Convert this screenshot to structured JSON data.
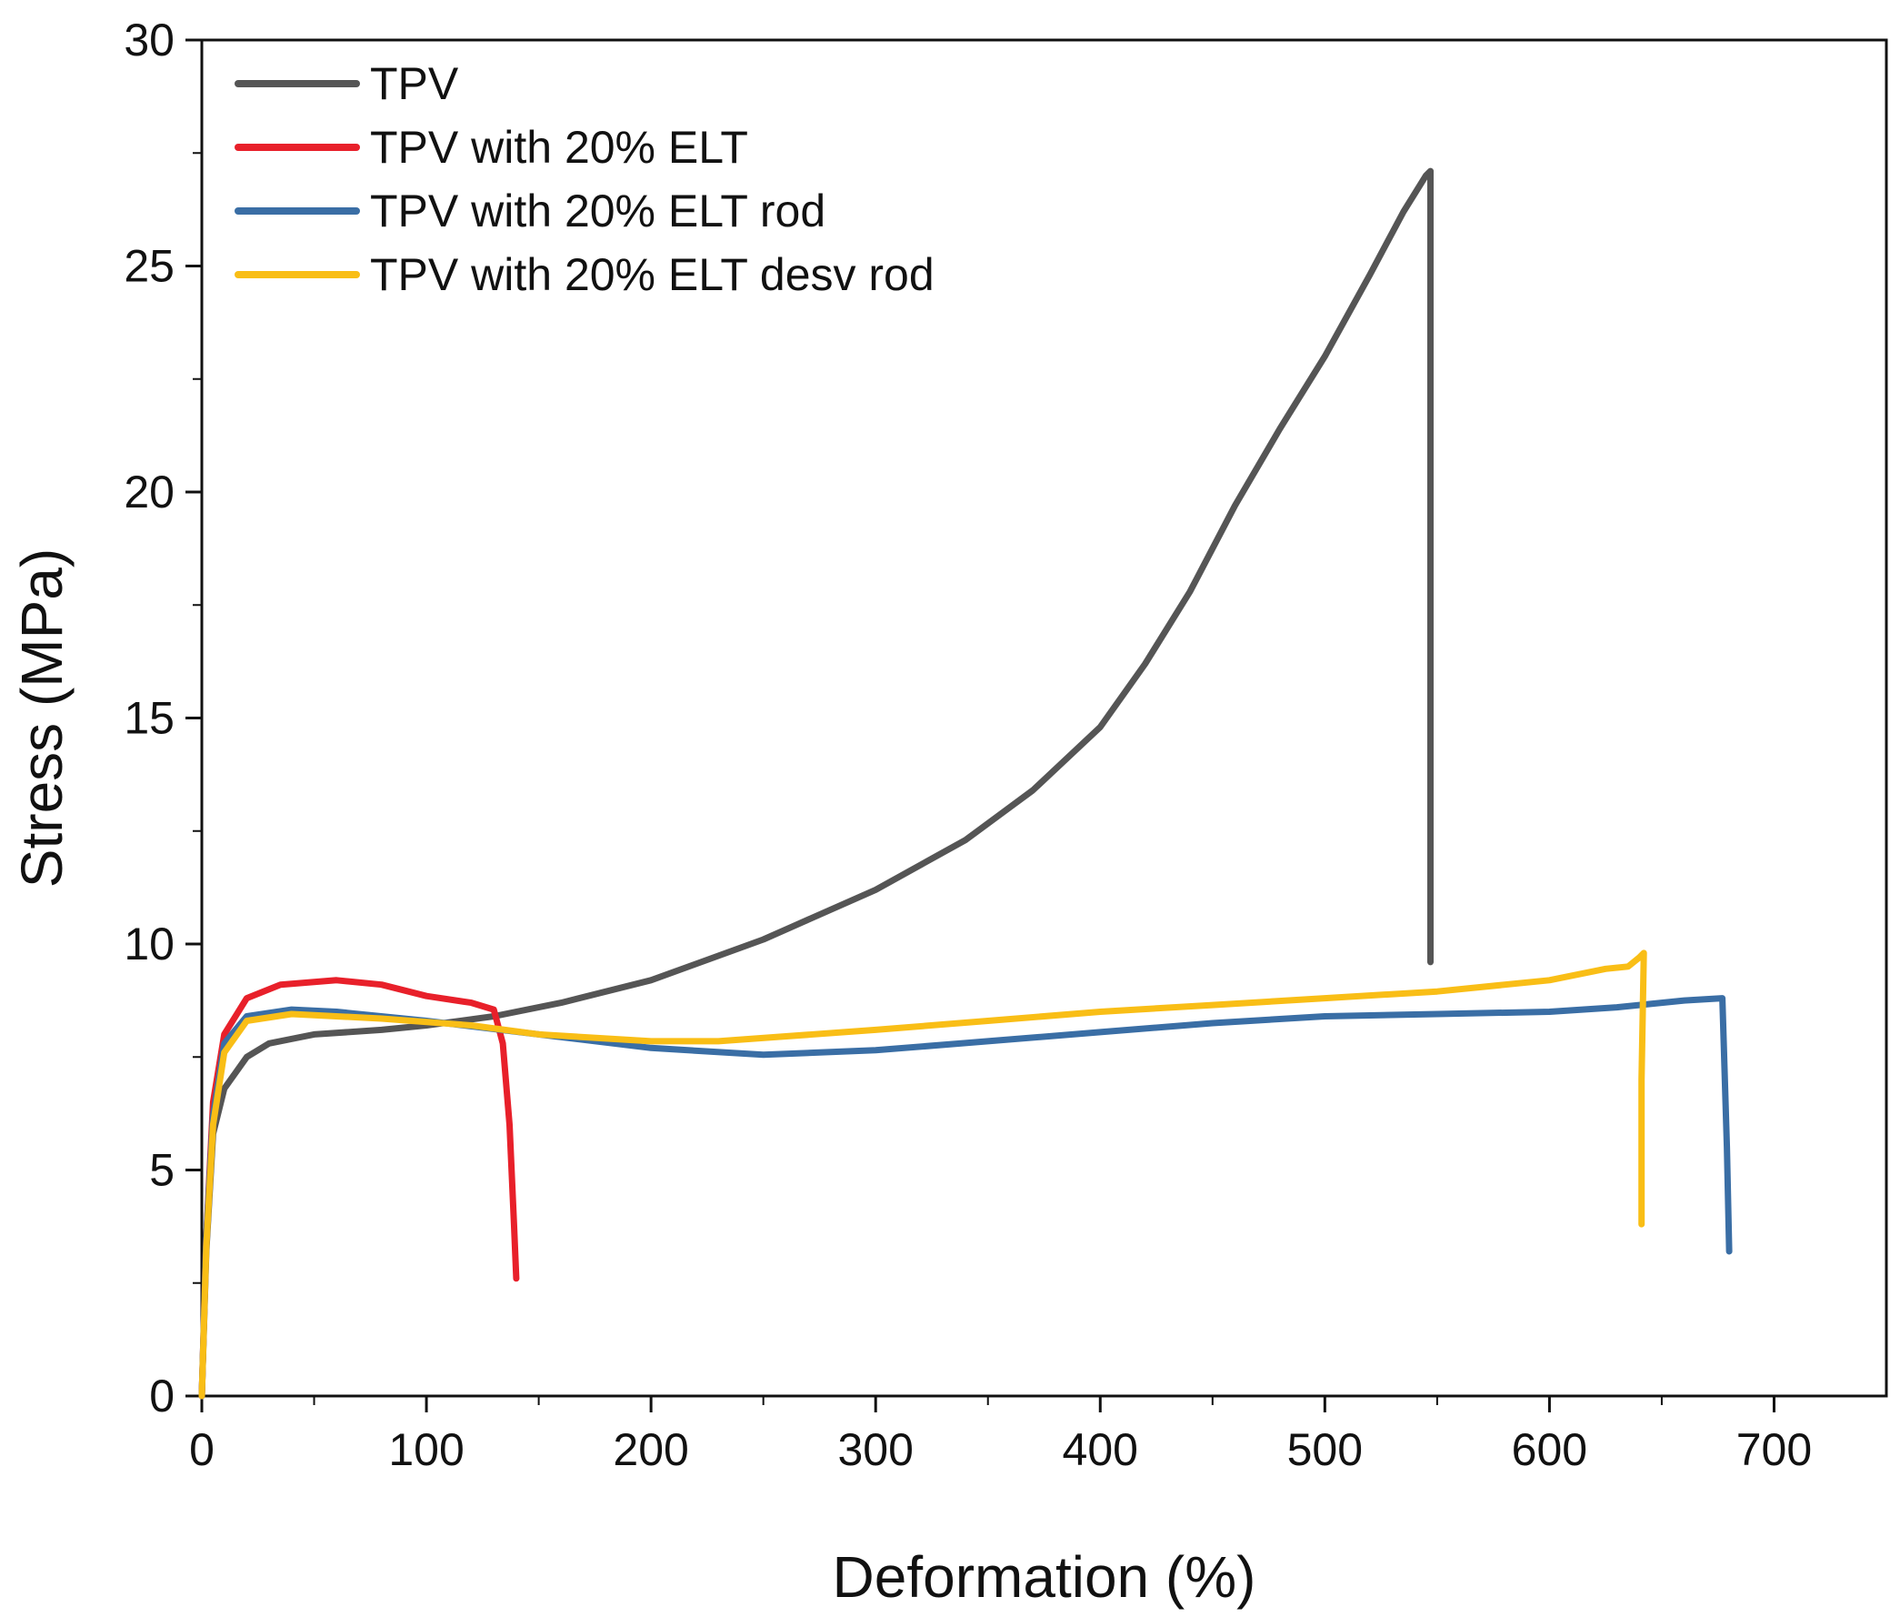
{
  "chart_data": {
    "type": "line",
    "title": "",
    "xlabel": "Deformation (%)",
    "ylabel": "Stress (MPa)",
    "xlim": [
      0,
      750
    ],
    "ylim": [
      0,
      30
    ],
    "xticks": [
      0,
      100,
      200,
      300,
      400,
      500,
      600,
      700
    ],
    "yticks": [
      0,
      5,
      10,
      15,
      20,
      25,
      30
    ],
    "grid": false,
    "legend_position": "top-left",
    "series": [
      {
        "name": "TPV",
        "color": "#555555",
        "points": [
          [
            0,
            0
          ],
          [
            2,
            3.2
          ],
          [
            5,
            5.8
          ],
          [
            10,
            6.8
          ],
          [
            20,
            7.5
          ],
          [
            30,
            7.8
          ],
          [
            50,
            8.0
          ],
          [
            80,
            8.1
          ],
          [
            100,
            8.2
          ],
          [
            130,
            8.4
          ],
          [
            160,
            8.7
          ],
          [
            200,
            9.2
          ],
          [
            250,
            10.1
          ],
          [
            300,
            11.2
          ],
          [
            340,
            12.3
          ],
          [
            370,
            13.4
          ],
          [
            400,
            14.8
          ],
          [
            420,
            16.2
          ],
          [
            440,
            17.8
          ],
          [
            460,
            19.7
          ],
          [
            480,
            21.4
          ],
          [
            500,
            23.0
          ],
          [
            520,
            24.8
          ],
          [
            535,
            26.2
          ],
          [
            545,
            27.0
          ],
          [
            547,
            27.1
          ],
          [
            547,
            9.6
          ]
        ]
      },
      {
        "name": "TPV with 20% ELT",
        "color": "#e8202a",
        "points": [
          [
            0,
            0
          ],
          [
            2,
            3.5
          ],
          [
            5,
            6.5
          ],
          [
            10,
            8.0
          ],
          [
            20,
            8.8
          ],
          [
            35,
            9.1
          ],
          [
            60,
            9.2
          ],
          [
            80,
            9.1
          ],
          [
            100,
            8.85
          ],
          [
            120,
            8.7
          ],
          [
            130,
            8.55
          ],
          [
            134,
            7.8
          ],
          [
            137,
            6.0
          ],
          [
            139,
            3.8
          ],
          [
            140,
            2.6
          ]
        ]
      },
      {
        "name": "TPV with 20% ELT rod",
        "color": "#3a6ea5",
        "points": [
          [
            0,
            0
          ],
          [
            2,
            3.5
          ],
          [
            5,
            6.2
          ],
          [
            10,
            7.8
          ],
          [
            20,
            8.4
          ],
          [
            40,
            8.55
          ],
          [
            60,
            8.5
          ],
          [
            100,
            8.3
          ],
          [
            150,
            8.0
          ],
          [
            200,
            7.7
          ],
          [
            250,
            7.55
          ],
          [
            300,
            7.65
          ],
          [
            350,
            7.85
          ],
          [
            400,
            8.05
          ],
          [
            450,
            8.25
          ],
          [
            500,
            8.4
          ],
          [
            550,
            8.45
          ],
          [
            600,
            8.5
          ],
          [
            630,
            8.6
          ],
          [
            660,
            8.75
          ],
          [
            677,
            8.8
          ],
          [
            679,
            5.5
          ],
          [
            680,
            3.2
          ]
        ]
      },
      {
        "name": "TPV with 20% ELT desv rod",
        "color": "#f9be16",
        "points": [
          [
            0,
            0
          ],
          [
            2,
            3.3
          ],
          [
            5,
            6.0
          ],
          [
            10,
            7.6
          ],
          [
            20,
            8.3
          ],
          [
            40,
            8.45
          ],
          [
            80,
            8.35
          ],
          [
            120,
            8.2
          ],
          [
            150,
            8.0
          ],
          [
            200,
            7.85
          ],
          [
            230,
            7.85
          ],
          [
            300,
            8.1
          ],
          [
            350,
            8.3
          ],
          [
            400,
            8.5
          ],
          [
            450,
            8.65
          ],
          [
            500,
            8.8
          ],
          [
            550,
            8.95
          ],
          [
            600,
            9.2
          ],
          [
            625,
            9.45
          ],
          [
            635,
            9.5
          ],
          [
            640,
            9.7
          ],
          [
            642,
            9.8
          ],
          [
            641,
            7.0
          ],
          [
            641,
            3.8
          ]
        ]
      }
    ]
  }
}
